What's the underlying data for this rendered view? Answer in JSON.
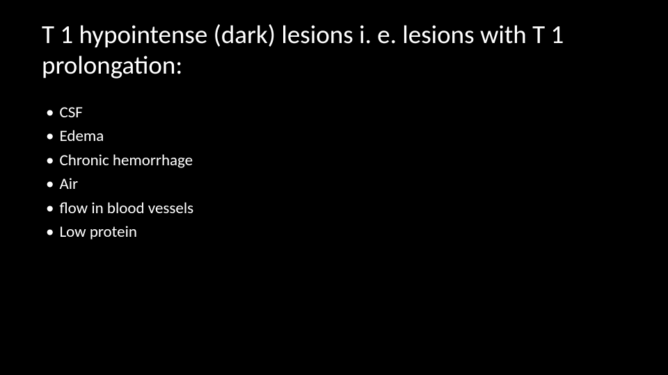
{
  "slide": {
    "background_color": "#000000",
    "text_color": "#ffffff",
    "title": "T 1 hypointense (dark) lesions i. e. lesions with T 1 prolongation:",
    "title_fontsize": 37,
    "title_fontweight": 400,
    "bullet_fontsize": 23,
    "bullet_fontweight": 400,
    "bullet_char": "•",
    "bullets": [
      "CSF",
      "Edema",
      "Chronic hemorrhage",
      "Air",
      "flow in blood vessels",
      "Low protein"
    ]
  }
}
